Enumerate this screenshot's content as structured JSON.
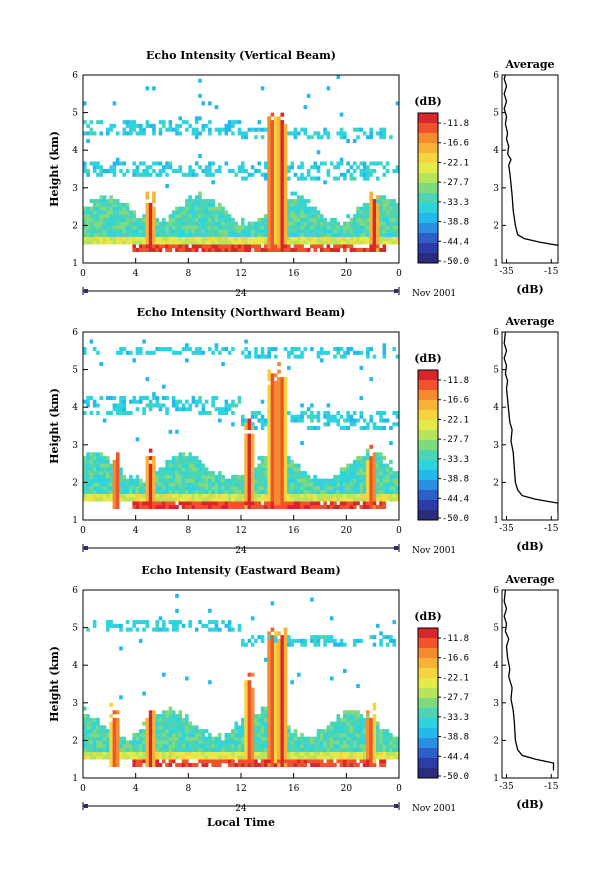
{
  "chart_data": [
    {
      "type": "heatmap",
      "title": "Echo Intensity (Vertical Beam)",
      "ylabel": "Height (km)",
      "xticks": [
        "0",
        "4",
        "8",
        "12",
        "16",
        "20",
        "0"
      ],
      "yticks": [
        "1",
        "2",
        "3",
        "4",
        "5",
        "6"
      ],
      "xlim": [
        0,
        24
      ],
      "ylim": [
        1,
        6
      ],
      "date_label": "24",
      "date_suffix": "Nov 2001",
      "colorbar": {
        "unit": "(dB)",
        "ticks": [
          "-11.8",
          "-16.6",
          "-22.1",
          "-27.7",
          "-33.3",
          "-38.8",
          "-44.4",
          "-50.0"
        ]
      },
      "average": {
        "title": "Average",
        "xlabel": "(dB)",
        "xticks": [
          "-35",
          "-15"
        ],
        "yticks": [
          "1",
          "2",
          "3",
          "4",
          "5",
          "6"
        ],
        "profile": [
          [
            -12,
            1.2
          ],
          [
            -10,
            1.45
          ],
          [
            -20,
            1.55
          ],
          [
            -27,
            1.65
          ],
          [
            -30,
            1.75
          ],
          [
            -31,
            2.0
          ],
          [
            -32,
            2.4
          ],
          [
            -32.5,
            2.8
          ],
          [
            -33,
            3.1
          ],
          [
            -33.5,
            3.4
          ],
          [
            -34,
            3.6
          ],
          [
            -33,
            3.75
          ],
          [
            -34.5,
            3.9
          ],
          [
            -34,
            4.1
          ],
          [
            -35,
            4.3
          ],
          [
            -34.5,
            4.45
          ],
          [
            -35.5,
            4.7
          ],
          [
            -35,
            4.9
          ],
          [
            -36,
            5.1
          ],
          [
            -35,
            5.3
          ],
          [
            -36,
            5.5
          ],
          [
            -35,
            5.7
          ],
          [
            -36,
            5.9
          ],
          [
            -35.5,
            6.0
          ]
        ]
      }
    },
    {
      "type": "heatmap",
      "title": "Echo Intensity (Northward Beam)",
      "ylabel": "Height (km)",
      "xticks": [
        "0",
        "4",
        "8",
        "12",
        "16",
        "20",
        "0"
      ],
      "yticks": [
        "1",
        "2",
        "3",
        "4",
        "5",
        "6"
      ],
      "xlim": [
        0,
        24
      ],
      "ylim": [
        1,
        6
      ],
      "date_label": "24",
      "date_suffix": "Nov 2001",
      "colorbar": {
        "unit": "(dB)",
        "ticks": [
          "-11.8",
          "-16.6",
          "-22.1",
          "-27.7",
          "-33.3",
          "-38.8",
          "-44.4",
          "-50.0"
        ]
      },
      "average": {
        "title": "Average",
        "xlabel": "(dB)",
        "xticks": [
          "-35",
          "-15"
        ],
        "yticks": [
          "1",
          "2",
          "3",
          "4",
          "5",
          "6"
        ],
        "profile": [
          [
            -12,
            1.2
          ],
          [
            -12,
            1.45
          ],
          [
            -22,
            1.55
          ],
          [
            -28,
            1.65
          ],
          [
            -30,
            1.8
          ],
          [
            -31,
            2.0
          ],
          [
            -31.5,
            2.4
          ],
          [
            -32,
            2.8
          ],
          [
            -33,
            3.1
          ],
          [
            -32.5,
            3.4
          ],
          [
            -33.5,
            3.6
          ],
          [
            -34,
            3.9
          ],
          [
            -34.5,
            4.2
          ],
          [
            -35,
            4.5
          ],
          [
            -34.5,
            4.7
          ],
          [
            -35.5,
            4.9
          ],
          [
            -35,
            5.1
          ],
          [
            -36,
            5.3
          ],
          [
            -35,
            5.5
          ],
          [
            -36,
            5.7
          ],
          [
            -35.5,
            6.0
          ]
        ]
      }
    },
    {
      "type": "heatmap",
      "title": "Echo Intensity (Eastward Beam)",
      "ylabel": "Height (km)",
      "xlabel": "Local Time",
      "xticks": [
        "0",
        "4",
        "8",
        "12",
        "16",
        "20",
        "0"
      ],
      "yticks": [
        "1",
        "2",
        "3",
        "4",
        "5",
        "6"
      ],
      "xlim": [
        0,
        24
      ],
      "ylim": [
        1,
        6
      ],
      "date_label": "24",
      "date_suffix": "Nov 2001",
      "colorbar": {
        "unit": "(dB)",
        "ticks": [
          "-11.8",
          "-16.6",
          "-22.1",
          "-27.7",
          "-33.3",
          "-38.8",
          "-44.4",
          "-50.0"
        ]
      },
      "average": {
        "title": "Average",
        "xlabel": "(dB)",
        "xticks": [
          "-35",
          "-15"
        ],
        "yticks": [
          "1",
          "2",
          "3",
          "4",
          "5",
          "6"
        ],
        "profile": [
          [
            -14,
            1.2
          ],
          [
            -14,
            1.4
          ],
          [
            -22,
            1.5
          ],
          [
            -28,
            1.6
          ],
          [
            -30,
            1.75
          ],
          [
            -31,
            2.0
          ],
          [
            -31.5,
            2.5
          ],
          [
            -32,
            2.8
          ],
          [
            -33,
            3.1
          ],
          [
            -32.5,
            3.4
          ],
          [
            -34,
            3.7
          ],
          [
            -33.5,
            3.9
          ],
          [
            -34.5,
            4.2
          ],
          [
            -35,
            4.5
          ],
          [
            -34,
            4.7
          ],
          [
            -35.5,
            4.9
          ],
          [
            -35,
            5.1
          ],
          [
            -36,
            5.3
          ],
          [
            -35,
            5.5
          ],
          [
            -36,
            5.7
          ],
          [
            -35.5,
            6.0
          ]
        ]
      }
    }
  ],
  "colors": {
    "scale": [
      "#d7262c",
      "#f0532c",
      "#f58a2f",
      "#f9b238",
      "#f6d43d",
      "#e3ea4a",
      "#b6e45a",
      "#7fd97f",
      "#4dd4b3",
      "#2fd3dd",
      "#24b9ec",
      "#2a8fe0",
      "#2d5fc8",
      "#2c3ea6",
      "#2a2c7d"
    ]
  }
}
